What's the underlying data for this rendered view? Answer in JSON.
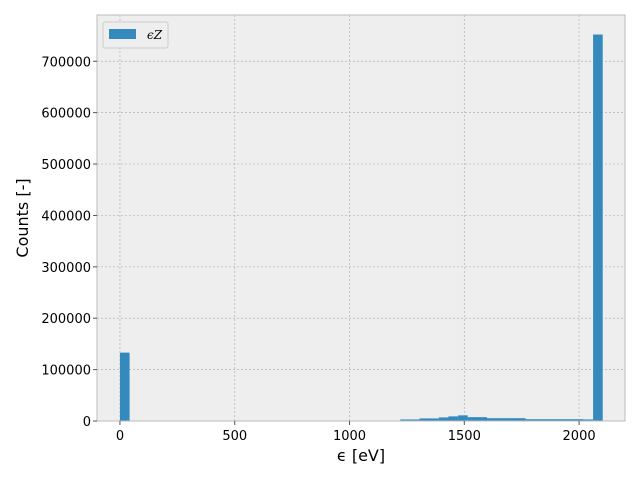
{
  "chart_data": {
    "type": "bar",
    "title": "",
    "xlabel": "ϵ [eV]",
    "ylabel": "Counts [-]",
    "xlim": [
      -100,
      2200
    ],
    "ylim": [
      0,
      790000
    ],
    "xticks": [
      0,
      500,
      1000,
      1500,
      2000
    ],
    "yticks": [
      0,
      100000,
      200000,
      300000,
      400000,
      500000,
      600000,
      700000
    ],
    "grid": true,
    "legend_position": "top-left",
    "series": [
      {
        "name": "ϵZ",
        "color": "#348abd",
        "bins": [
          {
            "x0": 0,
            "x1": 42,
            "count": 133000
          },
          {
            "x0": 1221,
            "x1": 1305,
            "count": 3000
          },
          {
            "x0": 1305,
            "x1": 1389,
            "count": 5000
          },
          {
            "x0": 1389,
            "x1": 1431,
            "count": 7000
          },
          {
            "x0": 1431,
            "x1": 1473,
            "count": 9000
          },
          {
            "x0": 1473,
            "x1": 1515,
            "count": 11000
          },
          {
            "x0": 1515,
            "x1": 1599,
            "count": 7500
          },
          {
            "x0": 1599,
            "x1": 1767,
            "count": 5500
          },
          {
            "x0": 1767,
            "x1": 2019,
            "count": 3500
          },
          {
            "x0": 2019,
            "x1": 2061,
            "count": 3000
          },
          {
            "x0": 2061,
            "x1": 2103,
            "count": 752000
          }
        ]
      }
    ]
  }
}
